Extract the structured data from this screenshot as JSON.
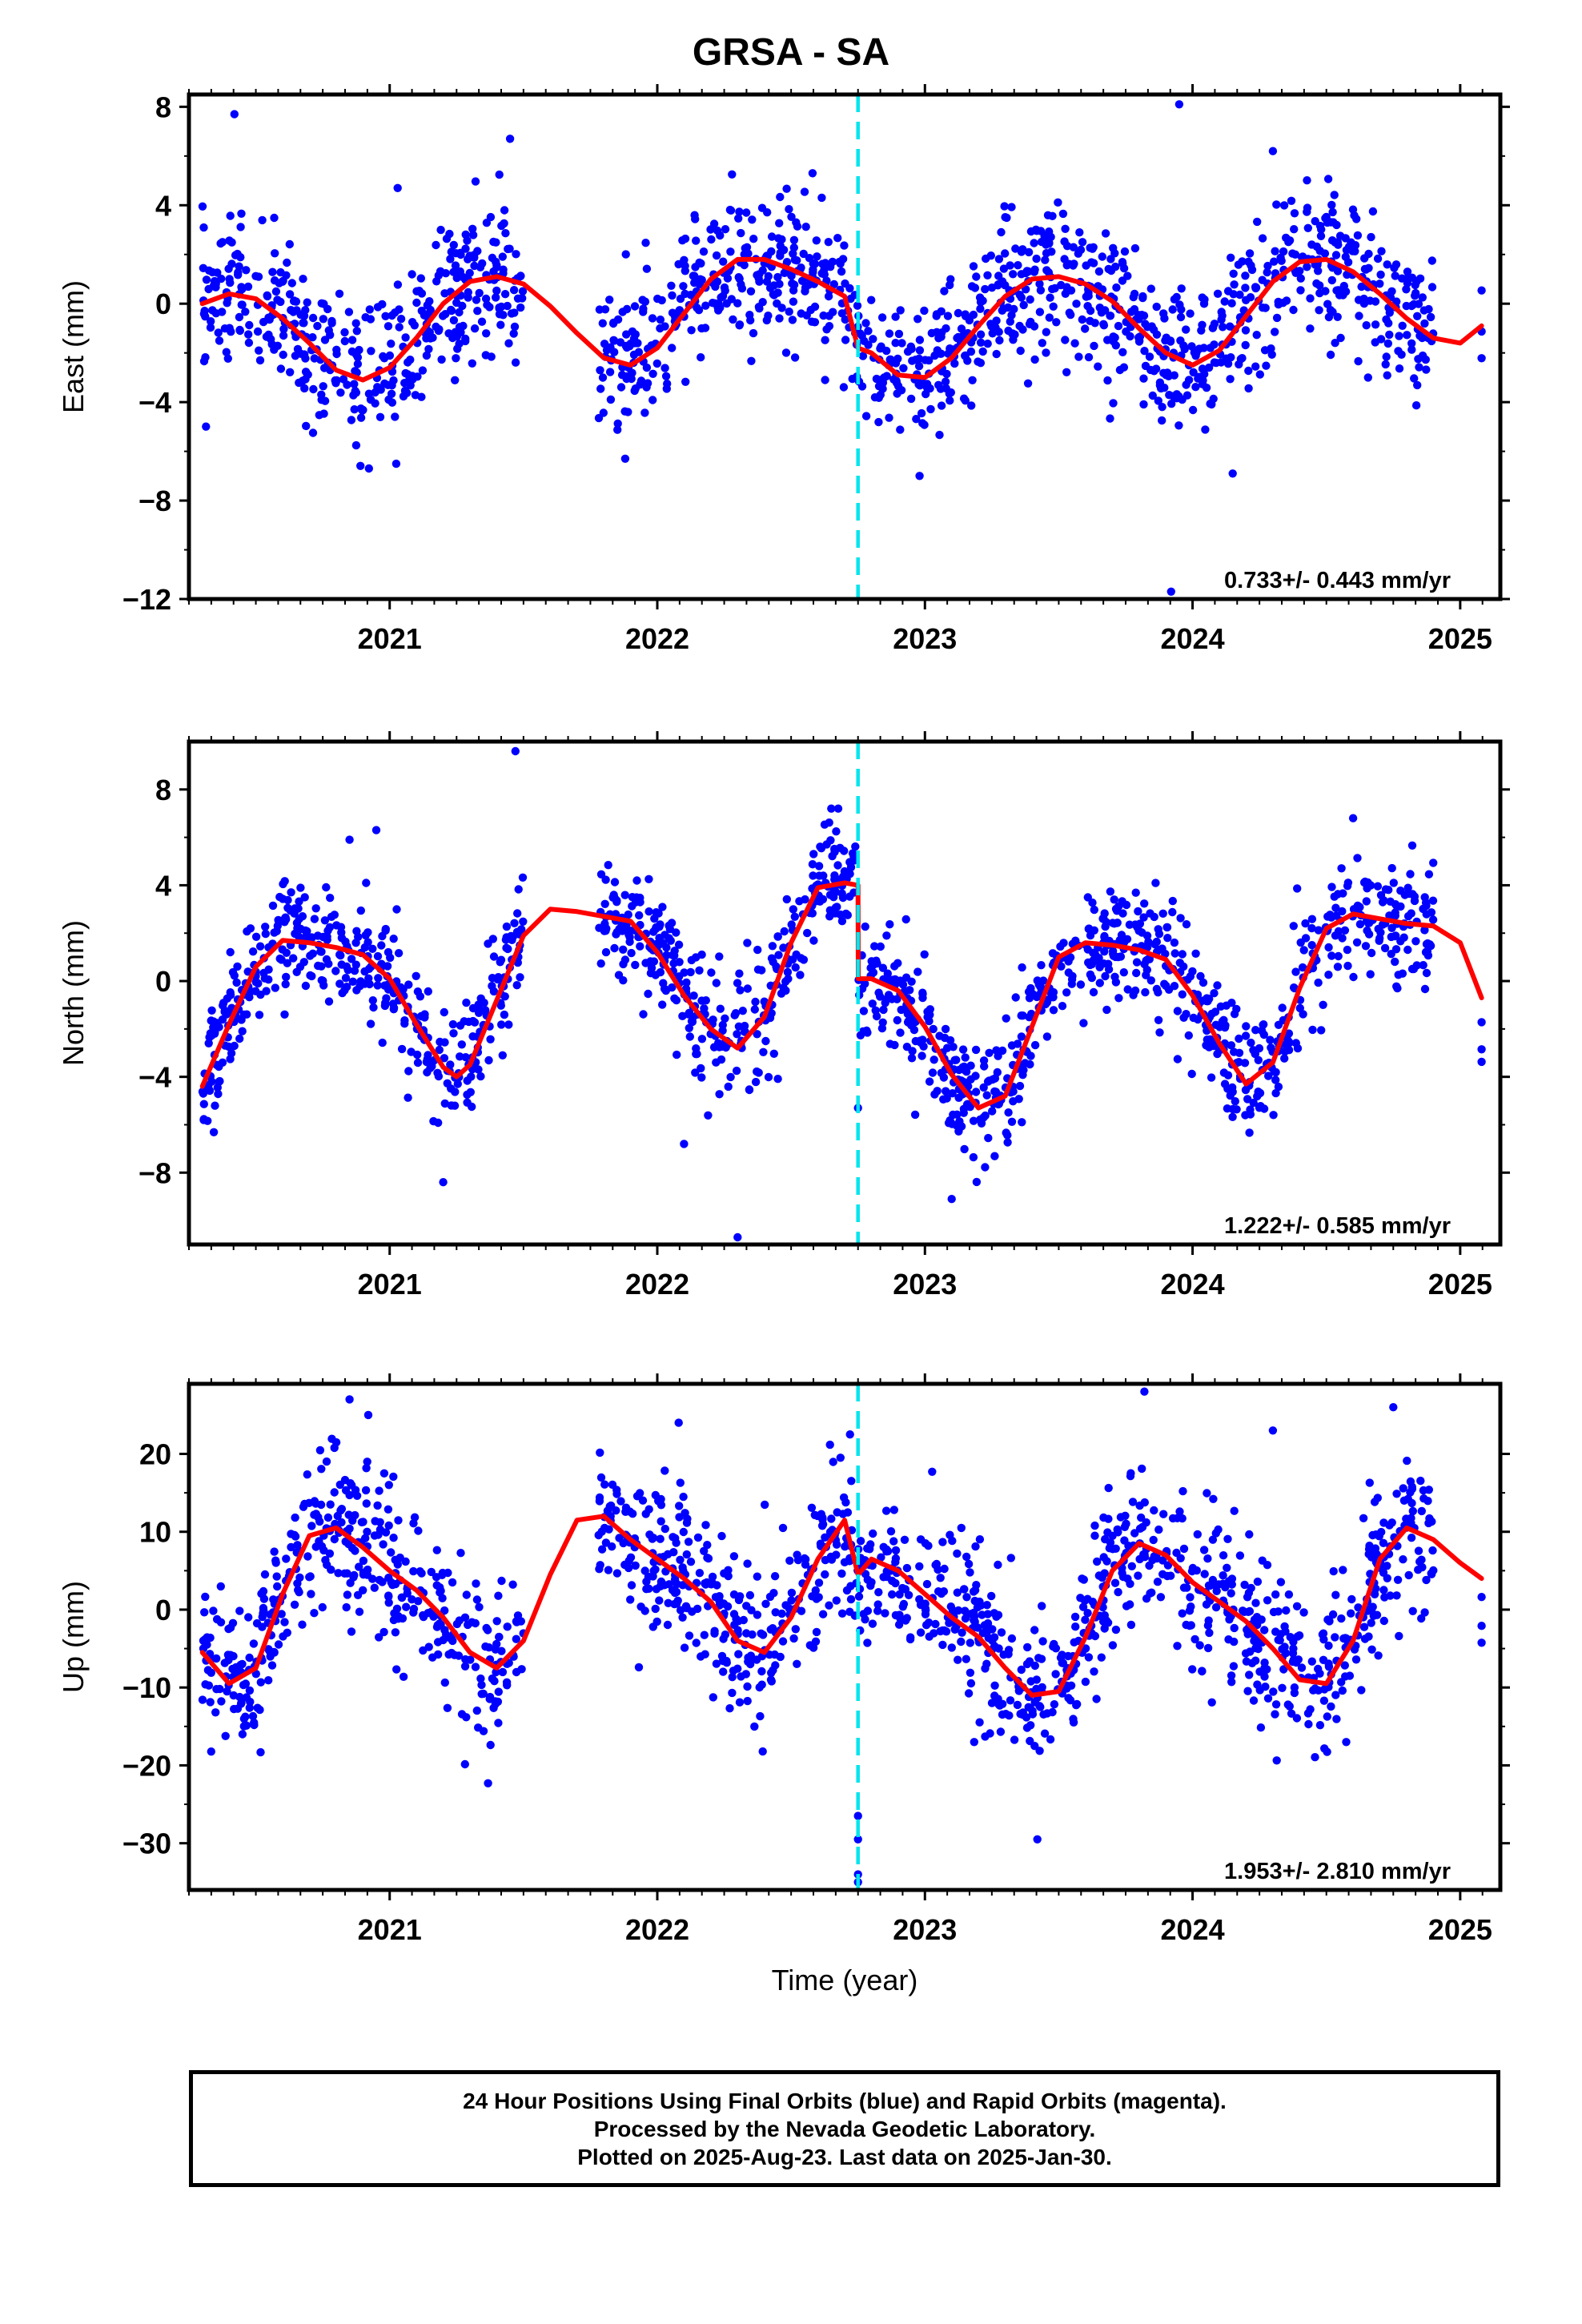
{
  "title": "GRSA - SA",
  "colors": {
    "observations": "#0000ff",
    "model": "#ff0000",
    "event": "#00e5ee",
    "frame": "#000000"
  },
  "chart_data": [
    {
      "type": "scatter",
      "component": "East",
      "ylabel": "East (mm)",
      "xlabel": "",
      "xlim": [
        2020.25,
        2025.15
      ],
      "ylim": [
        -12,
        8.5
      ],
      "yticks": [
        -12,
        -8,
        -4,
        0,
        4,
        8
      ],
      "ytick_labels": [
        "−12",
        "−8",
        "−4",
        "0",
        "4",
        "8"
      ],
      "xticks": [
        2021,
        2022,
        2023,
        2024,
        2025
      ],
      "xtick_labels": [
        "2021",
        "2022",
        "2023",
        "2024",
        "2025"
      ],
      "event_line_x": 2022.75,
      "rate_text": "0.733+/- 0.443 mm/yr",
      "model": {
        "x": [
          2020.3,
          2020.4,
          2020.5,
          2020.6,
          2020.7,
          2020.8,
          2020.9,
          2021.0,
          2021.1,
          2021.2,
          2021.3,
          2021.4,
          2021.5,
          2021.6,
          2021.7,
          2021.8,
          2021.9,
          2022.0,
          2022.1,
          2022.2,
          2022.3,
          2022.4,
          2022.5,
          2022.6,
          2022.7,
          2022.75,
          2022.8,
          2022.9,
          2023.0,
          2023.1,
          2023.2,
          2023.3,
          2023.4,
          2023.5,
          2023.6,
          2023.7,
          2023.8,
          2023.9,
          2024.0,
          2024.1,
          2024.2,
          2024.3,
          2024.4,
          2024.5,
          2024.6,
          2024.7,
          2024.8,
          2024.9,
          2025.0,
          2025.08
        ],
        "y": [
          0.0,
          0.4,
          0.2,
          -0.6,
          -1.6,
          -2.7,
          -3.1,
          -2.6,
          -1.4,
          0.0,
          0.9,
          1.1,
          0.8,
          -0.1,
          -1.2,
          -2.2,
          -2.5,
          -1.8,
          -0.4,
          1.0,
          1.8,
          1.8,
          1.4,
          0.9,
          0.3,
          -1.8,
          -2.0,
          -2.9,
          -3.0,
          -2.2,
          -0.9,
          0.3,
          1.0,
          1.1,
          0.8,
          0.1,
          -1.0,
          -2.0,
          -2.5,
          -1.9,
          -0.5,
          0.9,
          1.7,
          1.8,
          1.3,
          0.4,
          -0.6,
          -1.4,
          -1.6,
          -0.9
        ]
      },
      "observations": {
        "segments": [
          [
            2020.3,
            2021.5
          ],
          [
            2021.78,
            2022.75
          ],
          [
            2022.75,
            2023.65
          ],
          [
            2023.65,
            2024.9
          ]
        ],
        "extra_x": [
          2025.08,
          2025.08,
          2025.08
        ],
        "outliers": [
          [
            2020.42,
            7.7
          ],
          [
            2021.45,
            6.7
          ],
          [
            2021.03,
            4.7
          ],
          [
            2022.58,
            5.3
          ],
          [
            2023.95,
            8.1
          ],
          [
            2024.3,
            6.2
          ],
          [
            2023.92,
            -11.7
          ],
          [
            2024.15,
            -6.9
          ],
          [
            2022.98,
            -7.0
          ],
          [
            2021.88,
            -6.3
          ]
        ],
        "scatter_sd": 1.45,
        "count": 1500
      }
    },
    {
      "type": "scatter",
      "component": "North",
      "ylabel": "North (mm)",
      "xlabel": "",
      "xlim": [
        2020.25,
        2025.15
      ],
      "ylim": [
        -11,
        10
      ],
      "yticks": [
        -8,
        -4,
        0,
        4,
        8
      ],
      "ytick_labels": [
        "−8",
        "−4",
        "0",
        "4",
        "8"
      ],
      "xticks": [
        2021,
        2022,
        2023,
        2024,
        2025
      ],
      "xtick_labels": [
        "2021",
        "2022",
        "2023",
        "2024",
        "2025"
      ],
      "event_line_x": 2022.75,
      "rate_text": "1.222+/- 0.585 mm/yr",
      "model": {
        "x": [
          2020.3,
          2020.4,
          2020.5,
          2020.6,
          2020.7,
          2020.8,
          2020.9,
          2021.0,
          2021.1,
          2021.2,
          2021.25,
          2021.3,
          2021.4,
          2021.5,
          2021.6,
          2021.7,
          2021.8,
          2021.9,
          2022.0,
          2022.1,
          2022.2,
          2022.3,
          2022.4,
          2022.5,
          2022.6,
          2022.7,
          2022.75,
          2022.751,
          2022.8,
          2022.9,
          2023.0,
          2023.1,
          2023.2,
          2023.3,
          2023.4,
          2023.5,
          2023.6,
          2023.7,
          2023.8,
          2023.9,
          2024.0,
          2024.1,
          2024.2,
          2024.3,
          2024.4,
          2024.5,
          2024.6,
          2024.7,
          2024.8,
          2024.9,
          2025.0,
          2025.08
        ],
        "y": [
          -4.4,
          -1.8,
          0.6,
          1.7,
          1.6,
          1.4,
          1.1,
          0.1,
          -1.8,
          -3.6,
          -4.0,
          -3.5,
          -0.8,
          1.9,
          3.0,
          2.9,
          2.7,
          2.5,
          1.2,
          -0.6,
          -2.0,
          -2.8,
          -1.5,
          1.6,
          3.9,
          4.1,
          4.0,
          0.1,
          0.1,
          -0.4,
          -1.9,
          -3.9,
          -5.3,
          -4.8,
          -1.9,
          1.0,
          1.6,
          1.5,
          1.3,
          0.9,
          -0.6,
          -2.6,
          -4.3,
          -3.4,
          -0.3,
          2.2,
          2.8,
          2.6,
          2.4,
          2.3,
          1.6,
          -0.7
        ]
      },
      "observations": {
        "segments": [
          [
            2020.3,
            2021.5
          ],
          [
            2021.78,
            2022.75
          ],
          [
            2022.75,
            2023.65
          ],
          [
            2023.65,
            2024.9
          ]
        ],
        "extra_x": [
          2025.08,
          2025.08,
          2025.08
        ],
        "outliers": [
          [
            2021.47,
            9.6
          ],
          [
            2020.95,
            6.3
          ],
          [
            2020.85,
            5.9
          ],
          [
            2022.65,
            7.2
          ],
          [
            2024.6,
            6.8
          ],
          [
            2021.2,
            -8.4
          ],
          [
            2022.3,
            -10.7
          ],
          [
            2022.1,
            -6.8
          ],
          [
            2023.1,
            -9.1
          ],
          [
            2022.75,
            -5.3
          ]
        ],
        "scatter_sd": 1.25,
        "count": 1500
      }
    },
    {
      "type": "scatter",
      "component": "Up",
      "ylabel": "Up (mm)",
      "xlabel": "Time (year)",
      "xlim": [
        2020.25,
        2025.15
      ],
      "ylim": [
        -36,
        29
      ],
      "yticks": [
        -30,
        -20,
        -10,
        0,
        10,
        20
      ],
      "ytick_labels": [
        "−30",
        "−20",
        "−10",
        "0",
        "10",
        "20"
      ],
      "xticks": [
        2021,
        2022,
        2023,
        2024,
        2025
      ],
      "xtick_labels": [
        "2021",
        "2022",
        "2023",
        "2024",
        "2025"
      ],
      "event_line_x": 2022.75,
      "rate_text": "1.953+/- 2.810 mm/yr",
      "model": {
        "x": [
          2020.3,
          2020.4,
          2020.5,
          2020.6,
          2020.7,
          2020.8,
          2020.9,
          2021.0,
          2021.1,
          2021.2,
          2021.3,
          2021.4,
          2021.5,
          2021.6,
          2021.7,
          2021.8,
          2021.9,
          2022.0,
          2022.1,
          2022.2,
          2022.3,
          2022.4,
          2022.5,
          2022.6,
          2022.7,
          2022.75,
          2022.8,
          2022.9,
          2023.0,
          2023.1,
          2023.2,
          2023.3,
          2023.4,
          2023.5,
          2023.6,
          2023.7,
          2023.8,
          2023.9,
          2024.0,
          2024.1,
          2024.2,
          2024.3,
          2024.4,
          2024.5,
          2024.6,
          2024.7,
          2024.8,
          2024.9,
          2025.0,
          2025.08
        ],
        "y": [
          -5.5,
          -9.5,
          -7.5,
          2.0,
          9.5,
          10.5,
          8.0,
          5.0,
          2.5,
          -1.0,
          -5.5,
          -7.5,
          -4.0,
          4.5,
          11.5,
          12.0,
          9.0,
          6.5,
          4.0,
          1.0,
          -4.0,
          -5.5,
          -1.0,
          6.5,
          11.5,
          4.5,
          6.5,
          5.0,
          2.0,
          -1.0,
          -3.5,
          -7.5,
          -11.0,
          -10.5,
          -3.5,
          5.0,
          8.5,
          7.0,
          3.5,
          1.0,
          -1.5,
          -5.0,
          -9.0,
          -9.5,
          -4.0,
          6.5,
          10.5,
          9.0,
          6.0,
          4.0
        ]
      },
      "observations": {
        "segments": [
          [
            2020.3,
            2021.5
          ],
          [
            2021.78,
            2022.75
          ],
          [
            2022.75,
            2023.65
          ],
          [
            2023.65,
            2024.9
          ]
        ],
        "extra_x": [
          2025.08,
          2025.08,
          2025.08
        ],
        "outliers": [
          [
            2020.85,
            27.0
          ],
          [
            2020.92,
            25.0
          ],
          [
            2023.82,
            28.0
          ],
          [
            2022.08,
            24.0
          ],
          [
            2024.3,
            23.0
          ],
          [
            2024.75,
            26.0
          ],
          [
            2022.75,
            -35.0
          ],
          [
            2022.75,
            -34.0
          ],
          [
            2022.75,
            -29.5
          ],
          [
            2022.75,
            -26.5
          ],
          [
            2020.45,
            -16.0
          ],
          [
            2023.42,
            -29.5
          ],
          [
            2022.72,
            22.5
          ]
        ],
        "scatter_sd": 5.0,
        "count": 1500
      }
    }
  ],
  "caption": {
    "line1": "24 Hour Positions Using Final Orbits (blue) and Rapid Orbits (magenta).",
    "line2": "Processed by the Nevada Geodetic Laboratory.",
    "line3": "Plotted on 2025-Aug-23. Last data on 2025-Jan-30."
  }
}
